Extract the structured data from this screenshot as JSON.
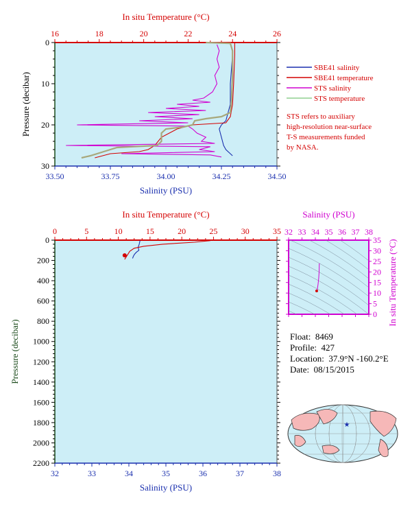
{
  "colors": {
    "panel_bg": "#cdeef7",
    "red": "#d40000",
    "blue": "#1a2fae",
    "magenta": "#d000d0",
    "green_gray": "#a8a87c",
    "pressure_label": "#1a4a1a",
    "land": "#f6b8b8",
    "ocean": "#cdeef7"
  },
  "float_info": {
    "float_label": "Float:",
    "float_value": "8469",
    "profile_label": "Profile:",
    "profile_value": "427",
    "location_label": "Location:",
    "location_value": "37.9°N  -160.2°E",
    "date_label": "Date:",
    "date_value": "08/15/2015"
  },
  "note": {
    "lines": [
      "STS refers to auxiliary",
      "high-resolution near-surface",
      "T-S measurements funded",
      "by NASA."
    ]
  },
  "legend": [
    {
      "label": "SBE41 salinity",
      "color": "#1a2fae"
    },
    {
      "label": "SBE41 temperature",
      "color": "#d40000"
    },
    {
      "label": "STS salinity",
      "color": "#d000d0"
    },
    {
      "label": "STS temperature",
      "color": "#8fcf8f"
    }
  ],
  "footer_text": "",
  "chart_data": [
    {
      "id": "top",
      "type": "line",
      "title": "In situ Temperature (°C)",
      "top_axis_label": "In situ Temperature (°C)",
      "xlabel": "Salinity (PSU)",
      "ylabel": "Pressure (decibar)",
      "xlim": [
        33.5,
        34.5
      ],
      "top_xlim": [
        16,
        26
      ],
      "ylim": [
        0,
        30
      ],
      "y_inverted": true,
      "x_ticks": [
        "33.50",
        "33.75",
        "34.00",
        "34.25",
        "34.50"
      ],
      "top_ticks": [
        "16",
        "18",
        "20",
        "22",
        "24",
        "26"
      ],
      "y_ticks": [
        "0",
        "10",
        "20",
        "30"
      ],
      "series": [
        {
          "name": "SBE41 salinity",
          "axis": "salinity",
          "points": [
            [
              34.3,
              3
            ],
            [
              34.29,
              10
            ],
            [
              34.29,
              15
            ],
            [
              34.28,
              17
            ],
            [
              34.27,
              19
            ],
            [
              34.25,
              20
            ],
            [
              34.24,
              21
            ],
            [
              34.25,
              23
            ],
            [
              34.26,
              25
            ],
            [
              34.27,
              26
            ],
            [
              34.3,
              27.5
            ]
          ]
        },
        {
          "name": "SBE41 temperature",
          "axis": "temperature",
          "points": [
            [
              24.1,
              0
            ],
            [
              24.1,
              3
            ],
            [
              24.05,
              10
            ],
            [
              24.0,
              15
            ],
            [
              23.9,
              18
            ],
            [
              23.7,
              19.5
            ],
            [
              22.2,
              20
            ],
            [
              21.5,
              21
            ],
            [
              20.8,
              23
            ],
            [
              20.5,
              25
            ],
            [
              20.2,
              26
            ],
            [
              19.8,
              26.5
            ],
            [
              18.5,
              27
            ],
            [
              17.8,
              28
            ]
          ]
        },
        {
          "name": "STS salinity",
          "axis": "salinity",
          "points": [
            [
              34.23,
              0.5
            ],
            [
              34.24,
              2
            ],
            [
              34.23,
              4
            ],
            [
              34.24,
              6
            ],
            [
              34.22,
              8
            ],
            [
              34.23,
              10
            ],
            [
              34.21,
              12
            ],
            [
              34.17,
              13.5
            ],
            [
              34.12,
              14
            ],
            [
              34.2,
              14.5
            ],
            [
              34.05,
              15
            ],
            [
              34.15,
              15.5
            ],
            [
              34.0,
              16
            ],
            [
              34.18,
              16.5
            ],
            [
              33.92,
              17
            ],
            [
              34.15,
              17.5
            ],
            [
              33.95,
              18
            ],
            [
              34.12,
              18.5
            ],
            [
              33.88,
              19
            ],
            [
              34.1,
              19.5
            ],
            [
              33.6,
              20
            ],
            [
              34.1,
              20.3
            ],
            [
              34.12,
              21
            ],
            [
              34.14,
              22
            ],
            [
              34.18,
              23
            ],
            [
              34.16,
              24
            ],
            [
              34.22,
              24.5
            ],
            [
              33.55,
              25
            ],
            [
              34.2,
              25.3
            ],
            [
              34.15,
              26
            ],
            [
              34.22,
              26.5
            ],
            [
              33.8,
              27
            ],
            [
              34.2,
              27.3
            ],
            [
              34.25,
              27.8
            ]
          ]
        },
        {
          "name": "STS temperature",
          "axis": "temperature",
          "points": [
            [
              22.8,
              0
            ],
            [
              23.9,
              0.2
            ],
            [
              24.0,
              2
            ],
            [
              24.0,
              8
            ],
            [
              23.95,
              14
            ],
            [
              23.9,
              17
            ],
            [
              23.5,
              18
            ],
            [
              22.8,
              18.5
            ],
            [
              22.3,
              19
            ],
            [
              22.2,
              20
            ],
            [
              21.8,
              20.5
            ],
            [
              21.0,
              21
            ],
            [
              20.8,
              22
            ],
            [
              20.8,
              24
            ],
            [
              20.6,
              25
            ],
            [
              19.5,
              25.3
            ],
            [
              18.8,
              25.5
            ],
            [
              18.2,
              26.5
            ],
            [
              17.6,
              27.5
            ],
            [
              17.2,
              28
            ]
          ]
        }
      ]
    },
    {
      "id": "bottom",
      "type": "line",
      "top_axis_label": "In situ Temperature (°C)",
      "xlabel": "Salinity (PSU)",
      "ylabel": "Pressure (decibar)",
      "xlim": [
        32,
        38
      ],
      "top_xlim": [
        0,
        35
      ],
      "ylim": [
        0,
        2200
      ],
      "y_inverted": true,
      "x_ticks": [
        "32",
        "33",
        "34",
        "35",
        "36",
        "37",
        "38"
      ],
      "top_ticks": [
        "0",
        "5",
        "10",
        "15",
        "20",
        "25",
        "30",
        "35"
      ],
      "y_ticks": [
        "0",
        "200",
        "400",
        "600",
        "800",
        "1000",
        "1200",
        "1400",
        "1600",
        "1800",
        "2000",
        "2200"
      ],
      "series": [
        {
          "name": "SBE41 salinity",
          "axis": "salinity",
          "points": [
            [
              34.3,
              5
            ],
            [
              34.28,
              40
            ],
            [
              34.25,
              70
            ],
            [
              34.27,
              100
            ],
            [
              34.2,
              120
            ],
            [
              34.15,
              140
            ],
            [
              34.12,
              160
            ],
            [
              34.1,
              180
            ]
          ]
        },
        {
          "name": "SBE41 temperature",
          "axis": "temperature",
          "points": [
            [
              24.5,
              5
            ],
            [
              22,
              20
            ],
            [
              17,
              40
            ],
            [
              14,
              60
            ],
            [
              12.5,
              80
            ],
            [
              11.8,
              110
            ],
            [
              11.5,
              140
            ],
            [
              11.2,
              170
            ],
            [
              11.0,
              190
            ]
          ]
        }
      ]
    },
    {
      "id": "ts",
      "type": "scatter",
      "title": "Salinity (PSU)",
      "xlabel": "Salinity (PSU)",
      "ylabel": "In situ Temperature (°C)",
      "xlim": [
        32,
        38
      ],
      "ylim": [
        0,
        35
      ],
      "x_ticks": [
        "32",
        "33",
        "34",
        "35",
        "36",
        "37",
        "38"
      ],
      "y_ticks": [
        "0",
        "5",
        "10",
        "15",
        "20",
        "25",
        "30",
        "35"
      ],
      "series": [
        {
          "name": "SBE41",
          "points": [
            [
              34.3,
              24
            ],
            [
              34.28,
              20
            ],
            [
              34.25,
              17
            ],
            [
              34.2,
              14
            ],
            [
              34.15,
              12
            ],
            [
              34.1,
              11
            ]
          ]
        }
      ]
    }
  ]
}
